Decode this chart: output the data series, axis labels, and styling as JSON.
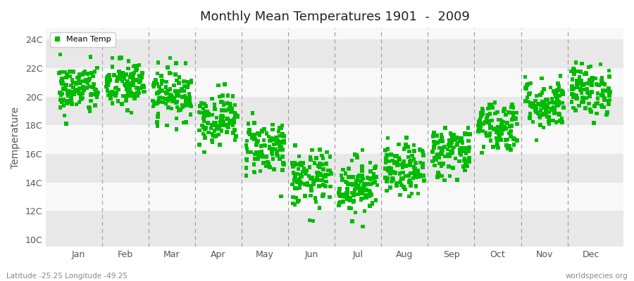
{
  "title": "Monthly Mean Temperatures 1901  -  2009",
  "ylabel": "Temperature",
  "xlabel_labels": [
    "Jan",
    "Feb",
    "Mar",
    "Apr",
    "May",
    "Jun",
    "Jul",
    "Aug",
    "Sep",
    "Oct",
    "Nov",
    "Dec"
  ],
  "ytick_labels": [
    "10C",
    "12C",
    "14C",
    "16C",
    "18C",
    "20C",
    "22C",
    "24C"
  ],
  "ytick_values": [
    10,
    12,
    14,
    16,
    18,
    20,
    22,
    24
  ],
  "ylim": [
    9.5,
    24.8
  ],
  "marker_color": "#00BB00",
  "marker": "s",
  "marker_size": 4,
  "legend_label": "Mean Temp",
  "fig_facecolor": "#ffffff",
  "ax_facecolor": "#f0f0f0",
  "band_colors": [
    "#e8e8e8",
    "#f8f8f8"
  ],
  "footer_left": "Latitude -25.25 Longitude -49.25",
  "footer_right": "worldspecies.org",
  "seed": 42,
  "num_years": 109,
  "monthly_means": [
    20.5,
    20.8,
    20.2,
    18.5,
    16.5,
    14.2,
    13.8,
    14.8,
    16.2,
    18.0,
    19.5,
    20.5
  ],
  "monthly_stds": [
    0.9,
    0.9,
    0.9,
    0.9,
    1.0,
    1.0,
    1.0,
    0.9,
    0.9,
    0.9,
    0.9,
    0.9
  ],
  "xlim": [
    0.3,
    12.7
  ],
  "vline_positions": [
    1.5,
    2.5,
    3.5,
    4.5,
    5.5,
    6.5,
    7.5,
    8.5,
    9.5,
    10.5,
    11.5
  ],
  "xtick_positions": [
    1,
    2,
    3,
    4,
    5,
    6,
    7,
    8,
    9,
    10,
    11,
    12
  ]
}
